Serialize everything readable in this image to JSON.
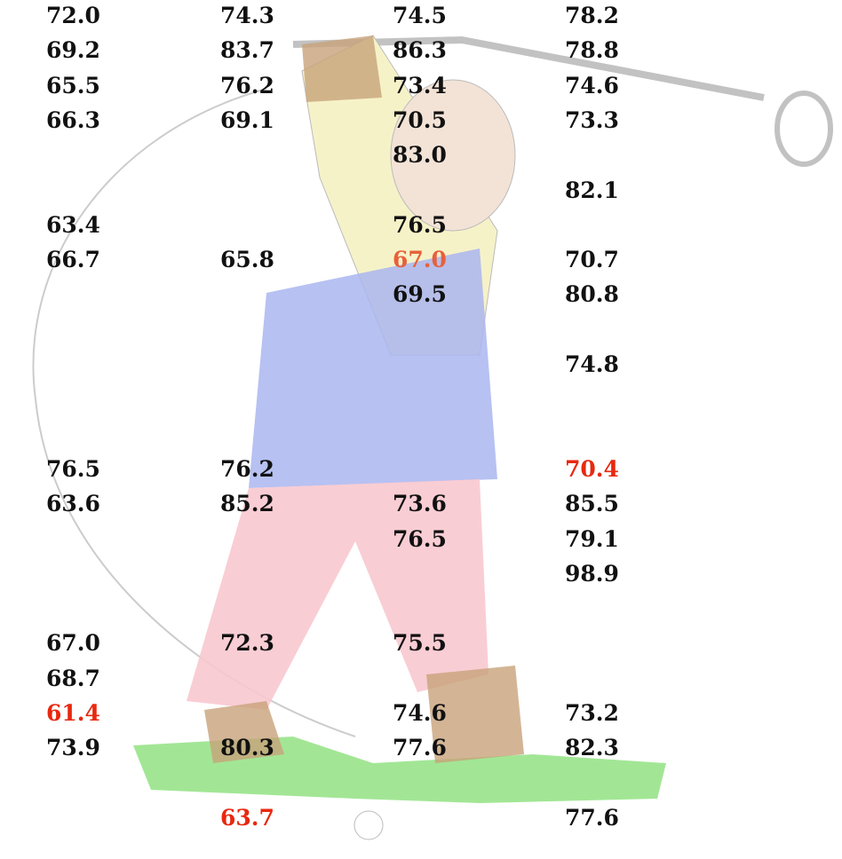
{
  "table": {
    "rows": [
      [
        "72.0",
        "74.3",
        "74.5",
        "78.2"
      ],
      [
        "69.2",
        "83.7",
        "86.3",
        "78.8"
      ],
      [
        "65.5",
        "76.2",
        "73.4",
        "74.6"
      ],
      [
        "66.3",
        "69.1",
        "70.5",
        "73.3"
      ],
      [
        null,
        null,
        "83.0",
        null
      ],
      [
        null,
        null,
        null,
        "82.1"
      ],
      [
        "63.4",
        null,
        "76.5",
        null
      ],
      [
        "66.7",
        "65.8",
        {
          "text": "67.0",
          "color": "#e8603c"
        },
        "70.7"
      ],
      [
        null,
        null,
        "69.5",
        "80.8"
      ],
      [
        null,
        null,
        null,
        null
      ],
      [
        null,
        null,
        null,
        "74.8"
      ],
      [
        null,
        null,
        null,
        null
      ],
      [
        null,
        null,
        null,
        null
      ],
      [
        "76.5",
        "76.2",
        null,
        {
          "text": "70.4",
          "color": "#e8280f"
        }
      ],
      [
        "63.6",
        "85.2",
        "73.6",
        "85.5"
      ],
      [
        null,
        null,
        "76.5",
        "79.1"
      ],
      [
        null,
        null,
        null,
        "98.9"
      ],
      [
        null,
        null,
        null,
        null
      ],
      [
        "67.0",
        "72.3",
        "75.5",
        null
      ],
      [
        "68.7",
        null,
        null,
        null
      ],
      [
        {
          "text": "61.4",
          "color": "#e8280f"
        },
        null,
        "74.6",
        "73.2"
      ],
      [
        "73.9",
        "80.3",
        "77.6",
        "82.3"
      ],
      [
        null,
        null,
        null,
        null
      ],
      [
        null,
        {
          "text": "63.7",
          "color": "#e8280f"
        },
        null,
        "77.6"
      ]
    ]
  }
}
